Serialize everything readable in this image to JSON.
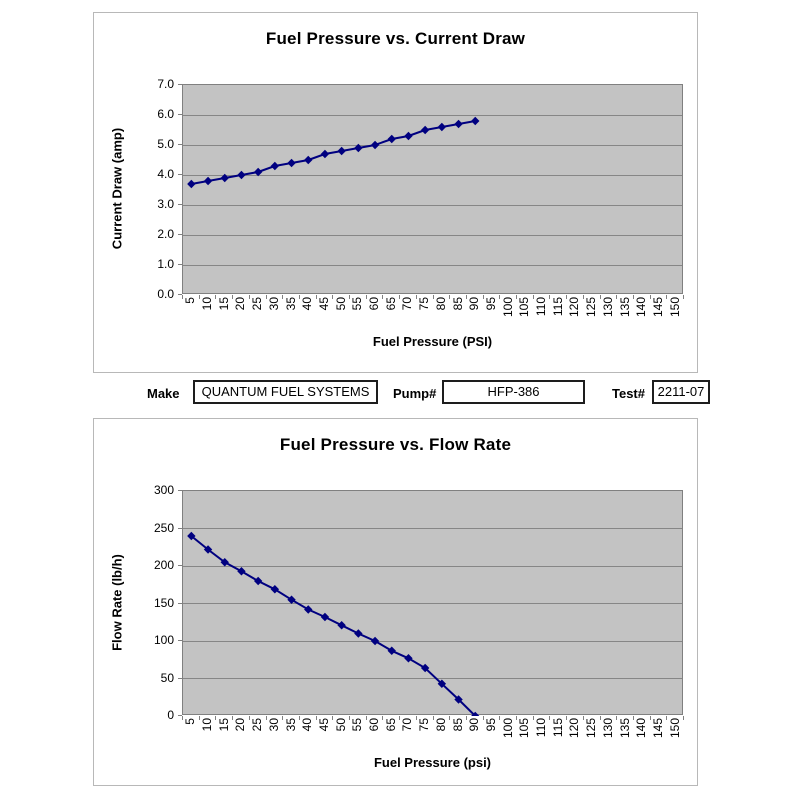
{
  "form": {
    "make_label": "Make",
    "make_value": "QUANTUM FUEL SYSTEMS",
    "pump_label": "Pump#",
    "pump_value": "HFP-386",
    "test_label": "Test#",
    "test_value": "2211-07"
  },
  "colors": {
    "series_line": "#000080",
    "marker": "#000080",
    "plot_background": "#c3c3c3",
    "gridline": "#868686",
    "axis": "#808080"
  },
  "chart_data": [
    {
      "type": "line",
      "title": "Fuel Pressure vs. Current Draw",
      "xlabel": "Fuel Pressure (PSI)",
      "ylabel": "Current Draw (amp)",
      "x": [
        5,
        10,
        15,
        20,
        25,
        30,
        35,
        40,
        45,
        50,
        55,
        60,
        65,
        70,
        75,
        80,
        85,
        90
      ],
      "values": [
        3.7,
        3.8,
        3.9,
        4.0,
        4.1,
        4.3,
        4.4,
        4.5,
        4.7,
        4.8,
        4.9,
        5.0,
        5.2,
        5.3,
        5.5,
        5.6,
        5.7,
        5.8
      ],
      "x_ticks": [
        5,
        10,
        15,
        20,
        25,
        30,
        35,
        40,
        45,
        50,
        55,
        60,
        65,
        70,
        75,
        80,
        85,
        90,
        95,
        100,
        105,
        110,
        115,
        120,
        125,
        130,
        135,
        140,
        145,
        150
      ],
      "ylim": [
        0,
        7
      ],
      "ytick_step": 1,
      "ytick_decimals": 1,
      "grid": true,
      "legend": "none",
      "marker": "diamond"
    },
    {
      "type": "line",
      "title": "Fuel Pressure vs. Flow Rate",
      "xlabel": "Fuel Pressure (psi)",
      "ylabel": "Flow Rate (lb/h)",
      "x": [
        5,
        10,
        15,
        20,
        25,
        30,
        35,
        40,
        45,
        50,
        55,
        60,
        65,
        70,
        75,
        80,
        85,
        90
      ],
      "values": [
        240,
        222,
        205,
        193,
        180,
        169,
        155,
        142,
        132,
        121,
        110,
        100,
        87,
        77,
        64,
        43,
        22,
        0
      ],
      "x_ticks": [
        5,
        10,
        15,
        20,
        25,
        30,
        35,
        40,
        45,
        50,
        55,
        60,
        65,
        70,
        75,
        80,
        85,
        90,
        95,
        100,
        105,
        110,
        115,
        120,
        125,
        130,
        135,
        140,
        145,
        150
      ],
      "ylim": [
        0,
        300
      ],
      "ytick_step": 50,
      "ytick_decimals": 0,
      "grid": true,
      "legend": "none",
      "marker": "diamond"
    }
  ]
}
